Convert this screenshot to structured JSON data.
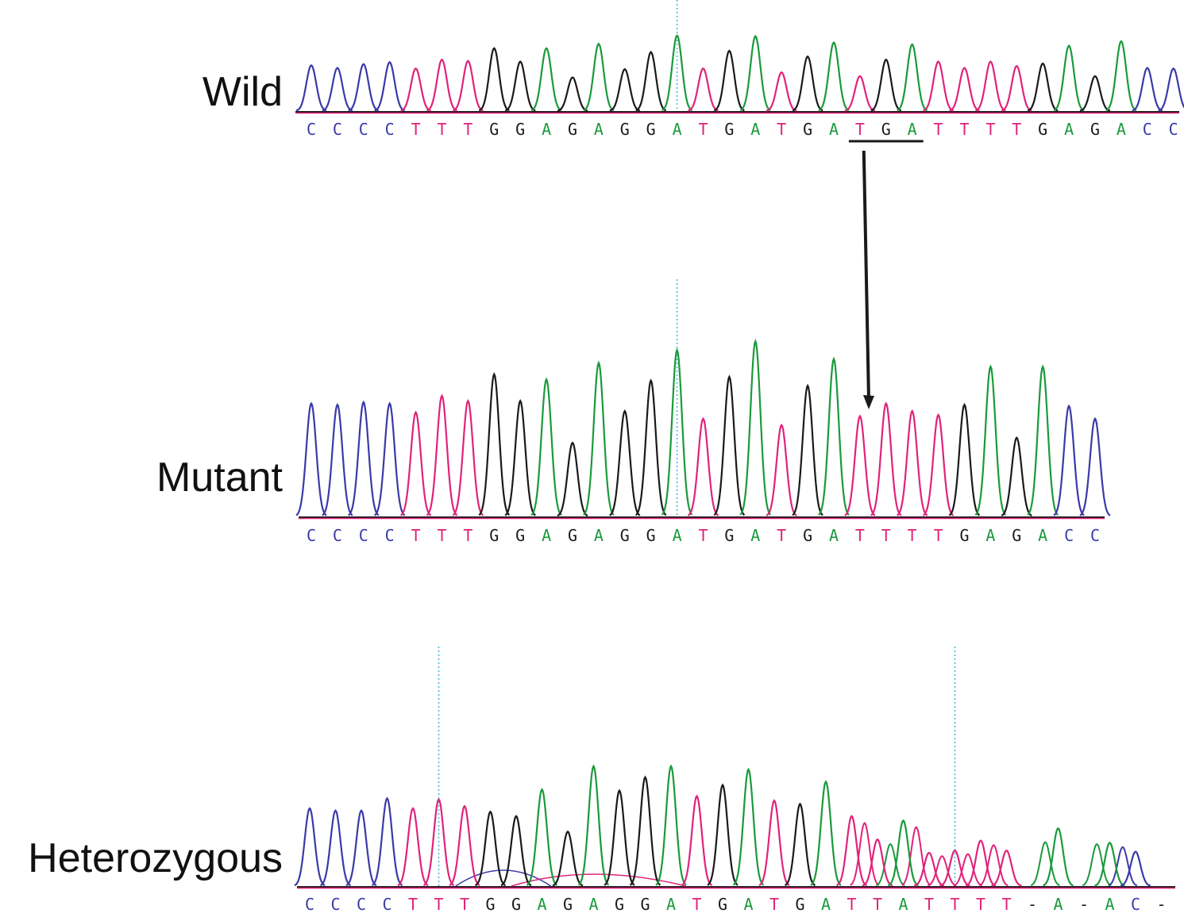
{
  "colors": {
    "A": "#1a9a3c",
    "C": "#3a3aa8",
    "G": "#1a1a1a",
    "T": "#e0237a",
    "-": "#1a1a1a",
    "marker": "#3fb5d8",
    "axis": "#1a1a1a",
    "annotation": "#1a1a1a"
  },
  "traces": [
    {
      "id": "wild",
      "label": "Wild",
      "bases": [
        "C",
        "C",
        "C",
        "C",
        "T",
        "T",
        "T",
        "G",
        "G",
        "A",
        "G",
        "A",
        "G",
        "G",
        "A",
        "T",
        "G",
        "A",
        "T",
        "G",
        "A",
        "T",
        "G",
        "A",
        "T",
        "T",
        "T",
        "T",
        "G",
        "A",
        "G",
        "A",
        "C",
        "C"
      ],
      "peak_heights": [
        0.72,
        0.68,
        0.74,
        0.77,
        0.67,
        0.81,
        0.79,
        0.99,
        0.78,
        0.99,
        0.53,
        1.06,
        0.66,
        0.93,
        1.19,
        0.67,
        0.95,
        1.18,
        0.61,
        0.86,
        1.08,
        0.55,
        0.81,
        1.05,
        0.78,
        0.68,
        0.78,
        0.71,
        0.75,
        1.03,
        0.55,
        1.1,
        0.68,
        0.67
      ],
      "markers_at_peak": [
        14
      ],
      "underlined_bases": [
        21,
        22,
        23
      ]
    },
    {
      "id": "mutant",
      "label": "Mutant",
      "bases": [
        "C",
        "C",
        "C",
        "C",
        "T",
        "T",
        "T",
        "G",
        "G",
        "A",
        "G",
        "A",
        "G",
        "G",
        "A",
        "T",
        "G",
        "A",
        "T",
        "G",
        "A",
        "T",
        "T",
        "T",
        "T",
        "G",
        "A",
        "G",
        "A",
        "C",
        "C"
      ],
      "peak_heights": [
        0.89,
        0.88,
        0.9,
        0.89,
        0.82,
        0.95,
        0.91,
        1.12,
        0.91,
        1.08,
        0.58,
        1.21,
        0.83,
        1.07,
        1.31,
        0.77,
        1.1,
        1.38,
        0.72,
        1.03,
        1.24,
        0.79,
        0.89,
        0.83,
        0.8,
        0.88,
        1.18,
        0.62,
        1.18,
        0.87,
        0.77
      ],
      "markers_at_peak": [
        14
      ]
    },
    {
      "id": "heterozygous",
      "label": "Heterozygous",
      "bases": [
        "C",
        "C",
        "C",
        "C",
        "T",
        "T",
        "T",
        "G",
        "G",
        "A",
        "G",
        "A",
        "G",
        "G",
        "A",
        "T",
        "G",
        "A",
        "T",
        "G",
        "A",
        "T",
        "T",
        "A",
        "T",
        "T",
        "T",
        "T",
        "-",
        "A",
        "-",
        "A",
        "C",
        "-"
      ],
      "peak_heights": [
        0.7,
        0.68,
        0.68,
        0.79,
        0.7,
        0.78,
        0.72,
        0.67,
        0.63,
        0.87,
        0.49,
        1.08,
        0.86,
        0.98,
        1.08,
        0.81,
        0.91,
        1.05,
        0.77,
        0.74,
        0.94,
        0.63,
        0.42,
        0.59,
        0.3,
        0.32,
        0.41,
        0.32,
        0.44,
        0.52,
        0.42,
        0.39,
        0.31,
        0.35
      ],
      "markers_at_peak": [
        5,
        25
      ],
      "overlap_from": 21
    }
  ]
}
